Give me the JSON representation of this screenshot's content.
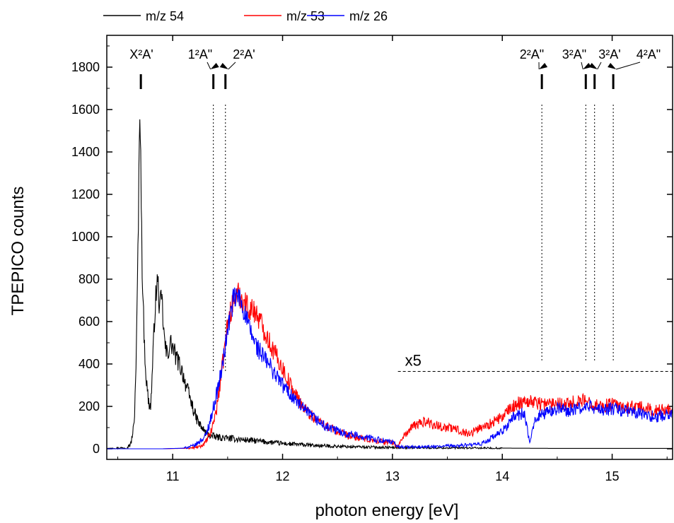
{
  "chart_data": {
    "type": "line",
    "xlabel": "photon energy [eV]",
    "ylabel": "TPEPICO counts",
    "xlim": [
      10.4,
      15.55
    ],
    "ylim": [
      -50,
      1950
    ],
    "x_ticks": [
      11,
      12,
      13,
      14,
      15
    ],
    "y_ticks": [
      0,
      200,
      400,
      600,
      800,
      1000,
      1200,
      1400,
      1600,
      1800
    ],
    "legend_position": "top",
    "series": [
      {
        "name": "m/z 54",
        "color": "#000000",
        "x": [
          10.4,
          10.58,
          10.62,
          10.65,
          10.67,
          10.69,
          10.7,
          10.71,
          10.72,
          10.74,
          10.76,
          10.78,
          10.8,
          10.82,
          10.84,
          10.86,
          10.87,
          10.88,
          10.9,
          10.92,
          10.94,
          10.96,
          10.98,
          11.0,
          11.03,
          11.06,
          11.09,
          11.12,
          11.15,
          11.18,
          11.21,
          11.25,
          11.3,
          11.35,
          11.4,
          11.5,
          11.6,
          11.7,
          11.8,
          12.0,
          12.3,
          12.6,
          13.0,
          13.5,
          14.0,
          14.5,
          15.0,
          15.55
        ],
        "values": [
          2,
          5,
          25,
          120,
          480,
          1150,
          1650,
          1350,
          900,
          520,
          320,
          220,
          200,
          430,
          680,
          790,
          760,
          650,
          720,
          540,
          450,
          460,
          500,
          480,
          430,
          400,
          360,
          300,
          250,
          200,
          150,
          110,
          75,
          60,
          55,
          50,
          45,
          40,
          35,
          25,
          15,
          10,
          6,
          4,
          3,
          2,
          2,
          2
        ]
      },
      {
        "name": "m/z 53",
        "color": "#ff0000",
        "x": [
          10.4,
          10.9,
          11.1,
          11.2,
          11.25,
          11.3,
          11.35,
          11.4,
          11.45,
          11.5,
          11.55,
          11.6,
          11.65,
          11.7,
          11.75,
          11.8,
          11.85,
          11.9,
          12.0,
          12.1,
          12.2,
          12.3,
          12.4,
          12.5,
          12.6,
          12.7,
          12.8,
          12.9,
          13.0,
          13.05,
          13.1,
          13.2,
          13.3,
          13.4,
          13.5,
          13.6,
          13.7,
          13.8,
          13.9,
          14.0,
          14.1,
          14.2,
          14.3,
          14.4,
          14.5,
          14.6,
          14.7,
          14.8,
          14.9,
          15.0,
          15.1,
          15.2,
          15.3,
          15.4,
          15.55
        ],
        "values": [
          0,
          0,
          2,
          5,
          10,
          30,
          80,
          190,
          380,
          590,
          700,
          730,
          700,
          660,
          650,
          600,
          540,
          480,
          380,
          270,
          190,
          140,
          110,
          80,
          60,
          50,
          40,
          35,
          30,
          10,
          60,
          110,
          130,
          110,
          100,
          90,
          70,
          100,
          120,
          150,
          200,
          230,
          220,
          210,
          220,
          210,
          230,
          220,
          200,
          210,
          190,
          200,
          190,
          180,
          190
        ]
      },
      {
        "name": "m/z 26",
        "color": "#0000ff",
        "x": [
          10.4,
          10.9,
          11.1,
          11.2,
          11.3,
          11.35,
          11.4,
          11.45,
          11.5,
          11.55,
          11.6,
          11.65,
          11.7,
          11.75,
          11.8,
          11.9,
          12.0,
          12.2,
          12.4,
          12.6,
          12.8,
          13.0,
          13.05,
          13.2,
          13.4,
          13.6,
          13.8,
          14.0,
          14.1,
          14.2,
          14.25,
          14.3,
          14.4,
          14.5,
          14.6,
          14.7,
          14.8,
          14.9,
          15.0,
          15.1,
          15.2,
          15.3,
          15.4,
          15.55
        ],
        "values": [
          0,
          0,
          3,
          15,
          60,
          150,
          260,
          380,
          560,
          700,
          720,
          650,
          560,
          500,
          450,
          380,
          300,
          180,
          100,
          70,
          50,
          30,
          10,
          8,
          10,
          15,
          20,
          80,
          150,
          170,
          20,
          150,
          170,
          190,
          180,
          190,
          200,
          180,
          190,
          180,
          170,
          160,
          150,
          170
        ]
      }
    ],
    "annotations": {
      "state_markers": [
        {
          "label": "X²A'",
          "x": 10.71
        },
        {
          "label": "1²A\"",
          "x": 11.37
        },
        {
          "label": "2²A'",
          "x": 11.48
        },
        {
          "label": "2²A\"",
          "x": 14.36
        },
        {
          "label": "3²A\"",
          "x": 14.76
        },
        {
          "label": "3²A'",
          "x": 14.84
        },
        {
          "label": "4²A\"",
          "x": 15.01
        }
      ],
      "scale_note": {
        "label": "x5",
        "x_start": 13.05,
        "x_end": 15.55,
        "y": 365
      }
    }
  }
}
